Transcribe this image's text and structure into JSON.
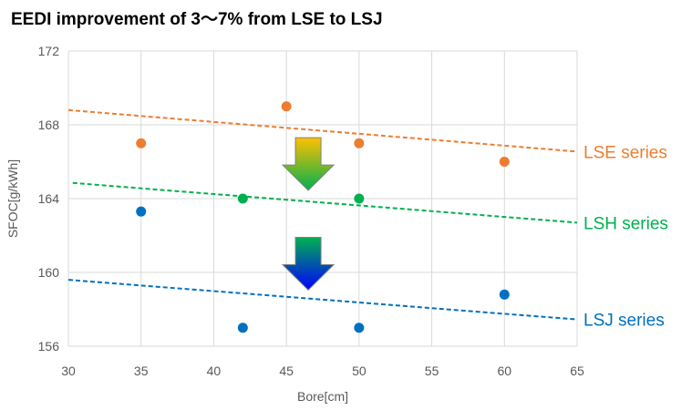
{
  "chart_data": {
    "type": "scatter",
    "title": "EEDI improvement of 3～7% from LSE to LSJ",
    "xlabel": "Bore[cm]",
    "ylabel": "SFOC[g/kWh]",
    "xlim": [
      30,
      65
    ],
    "ylim": [
      156,
      172
    ],
    "x_ticks": [
      "30",
      "35",
      "40",
      "45",
      "50",
      "55",
      "60",
      "65"
    ],
    "y_ticks": [
      "156",
      "160",
      "164",
      "168",
      "172"
    ],
    "grid": true,
    "series": [
      {
        "name": "LSE series",
        "color": "#ED7D31",
        "points": [
          {
            "x": 35,
            "y": 167
          },
          {
            "x": 45,
            "y": 169
          },
          {
            "x": 50,
            "y": 167
          },
          {
            "x": 60,
            "y": 166
          }
        ],
        "trend": [
          {
            "x": 30,
            "y": 168.8
          },
          {
            "x": 65,
            "y": 166.55
          }
        ]
      },
      {
        "name": "LSH series",
        "color": "#00B050",
        "points": [
          {
            "x": 42,
            "y": 164
          },
          {
            "x": 50,
            "y": 164
          }
        ],
        "trend": [
          {
            "x": 30.3,
            "y": 164.85
          },
          {
            "x": 65,
            "y": 162.7
          }
        ]
      },
      {
        "name": "LSJ series",
        "color": "#0070C0",
        "points": [
          {
            "x": 35,
            "y": 163.3
          },
          {
            "x": 42,
            "y": 157
          },
          {
            "x": 50,
            "y": 157
          },
          {
            "x": 60,
            "y": 158.8
          }
        ],
        "trend": [
          {
            "x": 30,
            "y": 159.6
          },
          {
            "x": 65,
            "y": 157.45
          }
        ]
      }
    ],
    "arrows": [
      {
        "x": 46.5,
        "y_top": 167.3,
        "y_bottom": 164.45,
        "colors": [
          "#FFC000",
          "#00B050"
        ]
      },
      {
        "x": 46.5,
        "y_top": 161.9,
        "y_bottom": 159.05,
        "colors": [
          "#00B050",
          "#0000FF"
        ]
      }
    ]
  }
}
